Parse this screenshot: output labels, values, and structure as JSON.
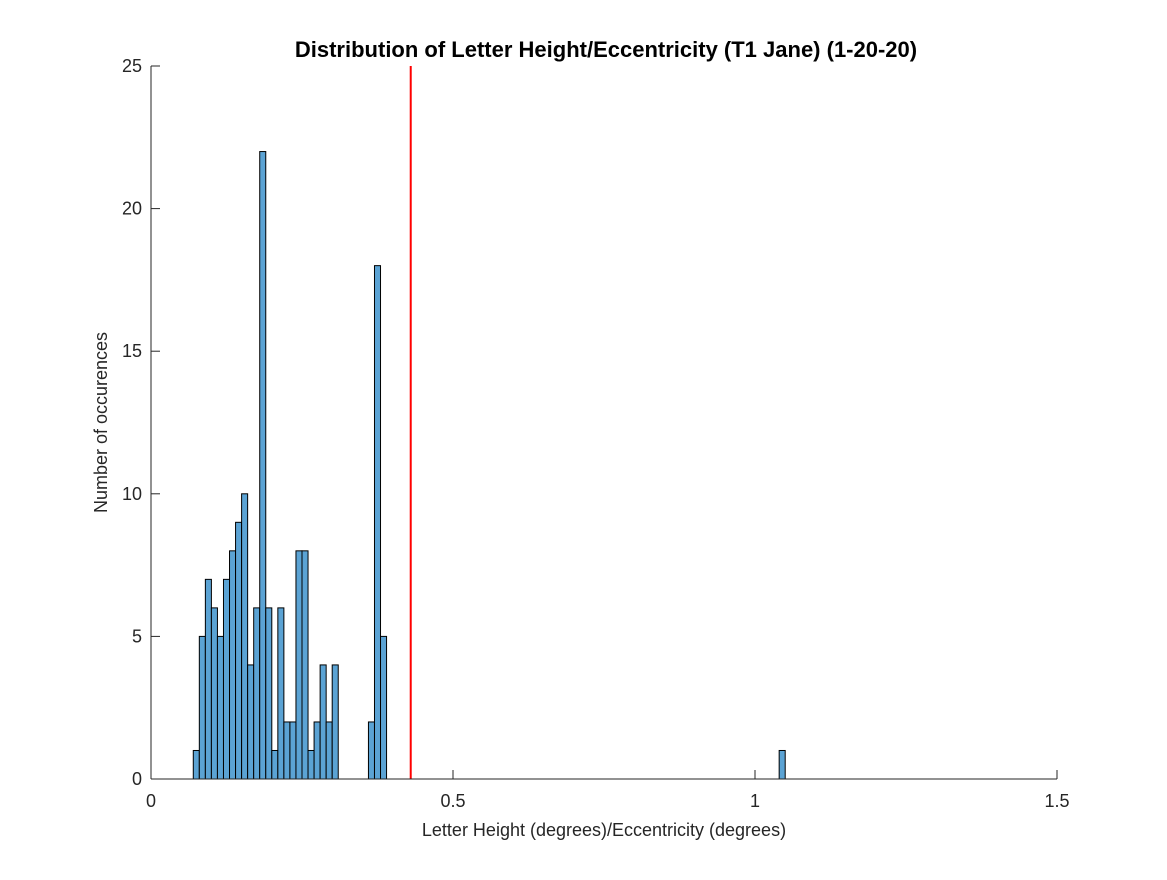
{
  "chart_data": {
    "type": "histogram",
    "title": "Distribution of Letter Height/Eccentricity (T1 Jane) (1-20-20)",
    "xlabel": "Letter Height (degrees)/Eccentricity (degrees)",
    "ylabel": "Number of occurences",
    "xlim": [
      0,
      1.5
    ],
    "ylim": [
      0,
      25
    ],
    "x_ticks": [
      0,
      0.5,
      1,
      1.5
    ],
    "x_tick_labels": [
      "0",
      "0.5",
      "1",
      "1.5"
    ],
    "y_ticks": [
      0,
      5,
      10,
      15,
      20,
      25
    ],
    "y_tick_labels": [
      "0",
      "5",
      "10",
      "15",
      "20",
      "25"
    ],
    "bin_width": 0.01,
    "bins": [
      {
        "x0": 0.07,
        "count": 1
      },
      {
        "x0": 0.08,
        "count": 5
      },
      {
        "x0": 0.09,
        "count": 7
      },
      {
        "x0": 0.1,
        "count": 6
      },
      {
        "x0": 0.11,
        "count": 5
      },
      {
        "x0": 0.12,
        "count": 7
      },
      {
        "x0": 0.13,
        "count": 8
      },
      {
        "x0": 0.14,
        "count": 9
      },
      {
        "x0": 0.15,
        "count": 10
      },
      {
        "x0": 0.16,
        "count": 4
      },
      {
        "x0": 0.17,
        "count": 6
      },
      {
        "x0": 0.18,
        "count": 22
      },
      {
        "x0": 0.19,
        "count": 6
      },
      {
        "x0": 0.2,
        "count": 1
      },
      {
        "x0": 0.21,
        "count": 6
      },
      {
        "x0": 0.22,
        "count": 2
      },
      {
        "x0": 0.23,
        "count": 2
      },
      {
        "x0": 0.24,
        "count": 8
      },
      {
        "x0": 0.25,
        "count": 8
      },
      {
        "x0": 0.26,
        "count": 1
      },
      {
        "x0": 0.27,
        "count": 2
      },
      {
        "x0": 0.28,
        "count": 4
      },
      {
        "x0": 0.29,
        "count": 2
      },
      {
        "x0": 0.3,
        "count": 4
      },
      {
        "x0": 0.36,
        "count": 2
      },
      {
        "x0": 0.37,
        "count": 18
      },
      {
        "x0": 0.38,
        "count": 5
      },
      {
        "x0": 1.04,
        "count": 1
      }
    ],
    "reference_line_x": 0.43,
    "colors": {
      "bar_fill": "#5BA3D4",
      "bar_edge": "#000000",
      "reference_line": "#FF0000",
      "axis": "#262626"
    },
    "grid": false,
    "box": false
  }
}
